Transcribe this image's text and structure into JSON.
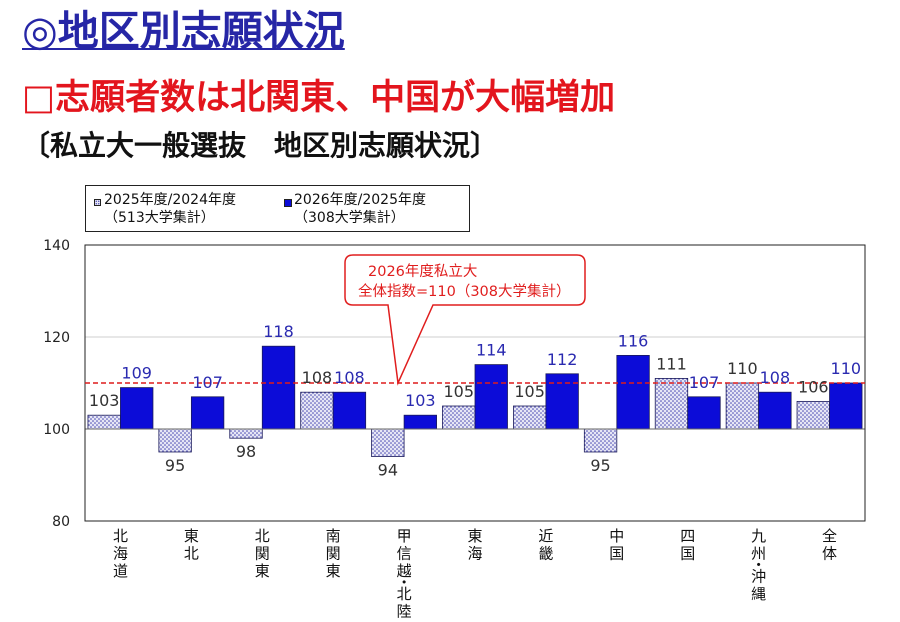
{
  "slide": {
    "title": "◎地区別志願状況",
    "subtitle": "□志願者数は北関東、中国が大幅増加",
    "caption": "〔私立大一般選抜　地区別志願状況〕"
  },
  "colors": {
    "title": "#2626a6",
    "subtitle": "#e3151d",
    "series_1_fill": "#e6e6f5",
    "series_1_dots": "#4444b0",
    "series_2_fill": "#0c0cd8",
    "bar_outline": "#1a1a5a",
    "series_1_label": "#333333",
    "series_2_label": "#2a2ab0",
    "reference_line": "#dd1c1c",
    "callout": "#e01e1e"
  },
  "chart_data": {
    "type": "bar",
    "categories": [
      "北海道",
      "東北",
      "北関東",
      "南関東",
      "甲信越・北陸",
      "東海",
      "近畿",
      "中国",
      "四国",
      "九州・沖縄",
      "全体"
    ],
    "series": [
      {
        "name": "2025年度/2024年度",
        "note": "（513大学集計）",
        "values": [
          103,
          95,
          98,
          108,
          94,
          105,
          105,
          95,
          111,
          110,
          106
        ]
      },
      {
        "name": "2026年度/2025年度",
        "note": "（308大学集計）",
        "values": [
          109,
          107,
          118,
          108,
          103,
          114,
          112,
          116,
          107,
          108,
          110
        ]
      }
    ],
    "ylim": [
      80,
      140
    ],
    "yticks": [
      80,
      100,
      120,
      140
    ],
    "baseline": 100,
    "grid": true,
    "legend": "top-left",
    "data_labels": true,
    "reference_line": {
      "value": 110,
      "label_lines": [
        "2026年度私立大",
        "全体指数=110（308大学集計）"
      ]
    }
  }
}
